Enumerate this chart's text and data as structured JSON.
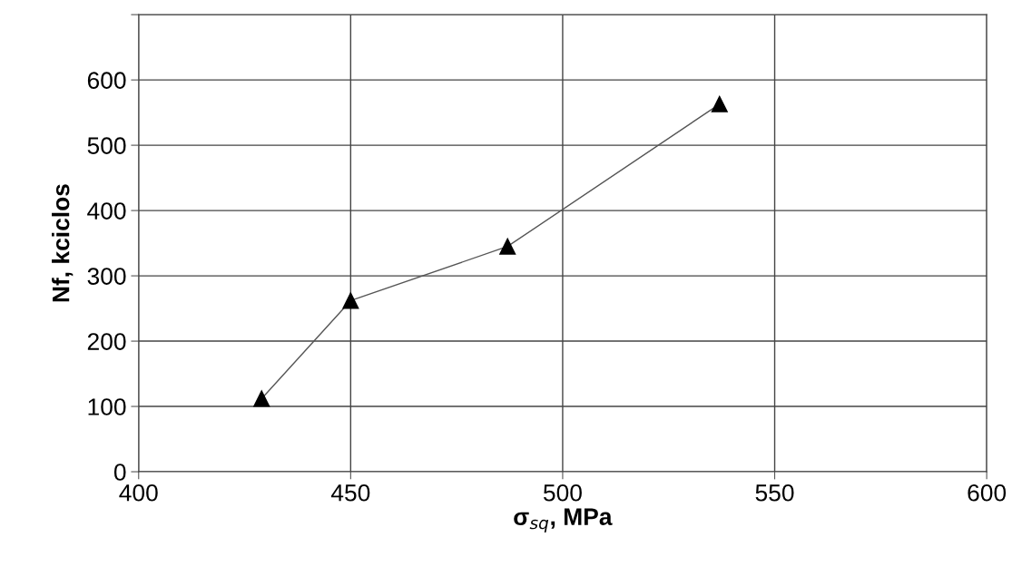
{
  "chart_data": {
    "type": "line",
    "xlabel": "σ$_{sq}$, MPa",
    "ylabel": "Nf, kciclos",
    "x": [
      429,
      450,
      487,
      537
    ],
    "series": [
      {
        "color": "#000000",
        "values": [
          112,
          262,
          345,
          563
        ]
      }
    ],
    "marker": "triangle",
    "line_style": "solid",
    "grid": true,
    "xlim": [
      400,
      600
    ],
    "xticks": [
      400,
      450,
      500,
      550,
      600
    ],
    "ylim": [
      0,
      700
    ],
    "yticks": [
      {
        "value": 0,
        "label": "0"
      },
      100,
      200,
      300,
      400,
      500,
      600,
      {
        "value": 700,
        "label": null
      }
    ]
  }
}
